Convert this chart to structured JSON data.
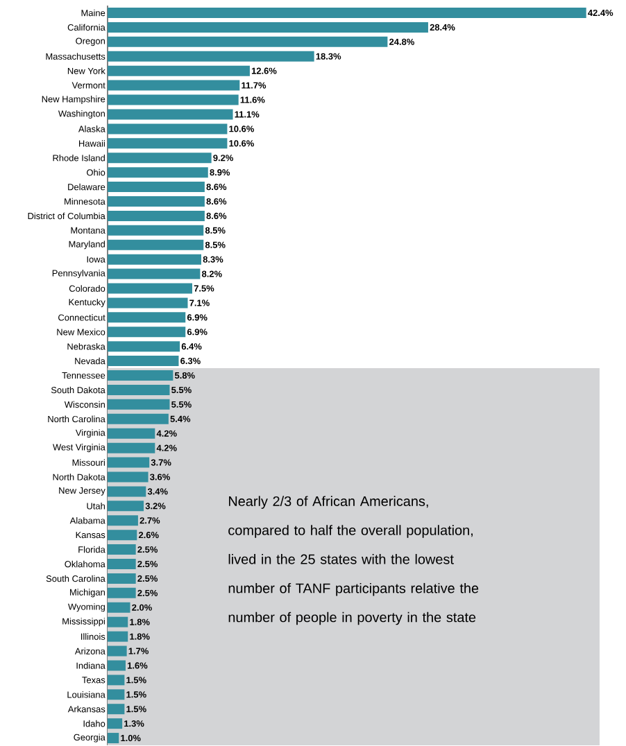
{
  "chart_data": {
    "type": "bar",
    "orientation": "horizontal",
    "color": "#338e9e",
    "categories": [
      "Maine",
      "California",
      "Oregon",
      "Massachusetts",
      "New York",
      "Vermont",
      "New Hampshire",
      "Washington",
      "Alaska",
      "Hawaii",
      "Rhode Island",
      "Ohio",
      "Delaware",
      "Minnesota",
      "District of Columbia",
      "Montana",
      "Maryland",
      "Iowa",
      "Pennsylvania",
      "Colorado",
      "Kentucky",
      "Connecticut",
      "New Mexico",
      "Nebraska",
      "Nevada",
      "Tennessee",
      "South Dakota",
      "Wisconsin",
      "North Carolina",
      "Virginia",
      "West Virginia",
      "Missouri",
      "North Dakota",
      "New Jersey",
      "Utah",
      "Alabama",
      "Kansas",
      "Florida",
      "Oklahoma",
      "South Carolina",
      "Michigan",
      "Wyoming",
      "Mississippi",
      "Illinois",
      "Arizona",
      "Indiana",
      "Texas",
      "Louisiana",
      "Arkansas",
      "Idaho",
      "Georgia"
    ],
    "values": [
      42.4,
      28.4,
      24.8,
      18.3,
      12.6,
      11.7,
      11.6,
      11.1,
      10.6,
      10.6,
      9.2,
      8.9,
      8.6,
      8.6,
      8.6,
      8.5,
      8.5,
      8.3,
      8.2,
      7.5,
      7.1,
      6.9,
      6.9,
      6.4,
      6.3,
      5.8,
      5.5,
      5.5,
      5.4,
      4.2,
      4.2,
      3.7,
      3.6,
      3.4,
      3.2,
      2.7,
      2.6,
      2.5,
      2.5,
      2.5,
      2.5,
      2.0,
      1.8,
      1.8,
      1.7,
      1.6,
      1.5,
      1.5,
      1.5,
      1.3,
      1.0
    ],
    "value_labels": [
      "42.4%",
      "28.4%",
      "24.8%",
      "18.3%",
      "12.6%",
      "11.7%",
      "11.6%",
      "11.1%",
      "10.6%",
      "10.6%",
      "9.2%",
      "8.9%",
      "8.6%",
      "8.6%",
      "8.6%",
      "8.5%",
      "8.5%",
      "8.3%",
      "8.2%",
      "7.5%",
      "7.1%",
      "6.9%",
      "6.9%",
      "6.4%",
      "6.3%",
      "5.8%",
      "5.5%",
      "5.5%",
      "5.4%",
      "4.2%",
      "4.2%",
      "3.7%",
      "3.6%",
      "3.4%",
      "3.2%",
      "2.7%",
      "2.6%",
      "2.5%",
      "2.5%",
      "2.5%",
      "2.5%",
      "2.0%",
      "1.8%",
      "1.8%",
      "1.7%",
      "1.6%",
      "1.5%",
      "1.5%",
      "1.5%",
      "1.3%",
      "1.0%"
    ],
    "bands": [
      {
        "axis": "y",
        "from": "Tennessee",
        "to": "Georgia",
        "color": "#d3d4d6"
      }
    ],
    "annotations": [
      "Nearly 2/3 of African Americans, compared to half the overall population, lived in the 25 states with the lowest number of TANF participants relative the number of people in poverty in the state"
    ]
  }
}
